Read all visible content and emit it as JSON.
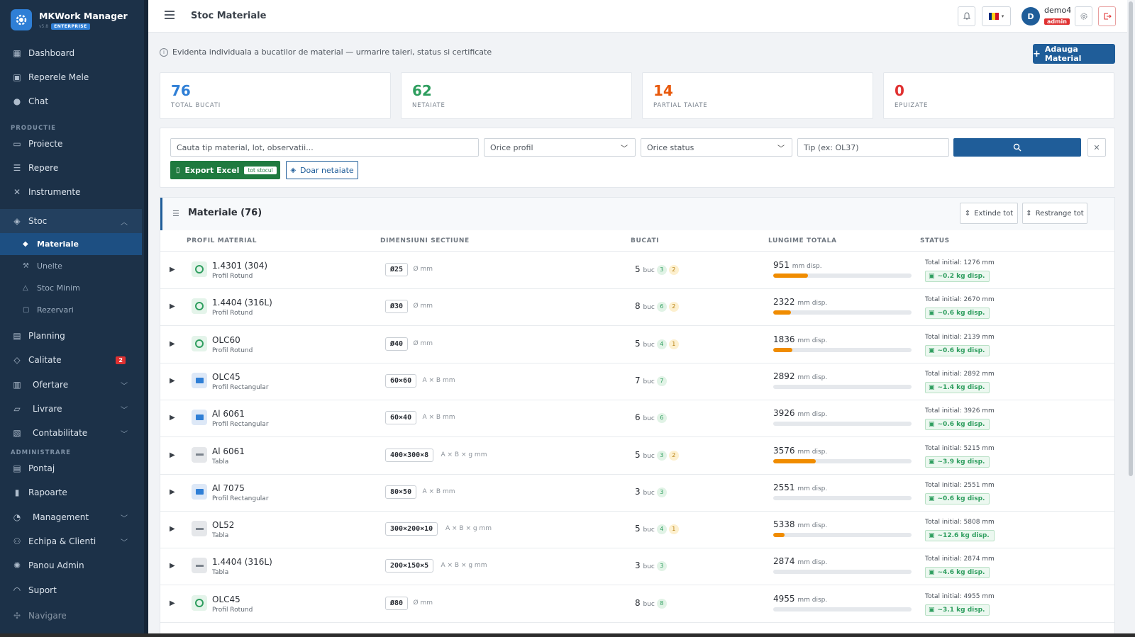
{
  "brand": {
    "name": "MKWork Manager",
    "version": "v5.8",
    "edition": "ENTERPRISE"
  },
  "sidebar": {
    "items": [
      {
        "label": "Dashboard",
        "icon": "dashboard-icon"
      },
      {
        "label": "Reperele Mele",
        "icon": "id-card-icon"
      },
      {
        "label": "Chat",
        "icon": "chat-icon"
      },
      {
        "label": "Proiecte",
        "icon": "folder-icon"
      },
      {
        "label": "Repere",
        "icon": "list-icon"
      },
      {
        "label": "Instrumente",
        "icon": "tools-icon"
      },
      {
        "label": "Stoc",
        "icon": "boxes-icon"
      },
      {
        "label": "Planning",
        "icon": "calendar-icon"
      },
      {
        "label": "Calitate",
        "icon": "shield-icon",
        "badge": "2"
      },
      {
        "label": "Ofertare",
        "icon": "receipt-icon"
      },
      {
        "label": "Livrare",
        "icon": "truck-icon"
      },
      {
        "label": "Contabilitate",
        "icon": "ledger-icon"
      },
      {
        "label": "Pontaj",
        "icon": "calendar-check-icon"
      },
      {
        "label": "Rapoarte",
        "icon": "bar-chart-icon"
      },
      {
        "label": "Management",
        "icon": "gauge-icon"
      },
      {
        "label": "Echipa & Clienti",
        "icon": "users-icon"
      },
      {
        "label": "Panou Admin",
        "icon": "gear-icon"
      },
      {
        "label": "Suport",
        "icon": "headset-icon"
      },
      {
        "label": "Navigare",
        "icon": "compass-icon"
      }
    ],
    "sections": [
      "PRODUCTIE",
      "ADMINISTRARE"
    ],
    "stoc_sub": [
      "Materiale",
      "Unelte",
      "Stoc Minim",
      "Rezervari"
    ]
  },
  "topbar": {
    "title": "Stoc Materiale",
    "user_initial": "D",
    "user_name": "demo4",
    "user_role": "admin"
  },
  "info": {
    "text": "Evidenta individuala a bucatilor de material — urmarire taieri, status si certificate",
    "add_button": "Adauga Material"
  },
  "stats": [
    {
      "value": "76",
      "label": "TOTAL BUCATI",
      "color": "#2f7fd6"
    },
    {
      "value": "62",
      "label": "NETAIATE",
      "color": "#2f9e5f"
    },
    {
      "value": "14",
      "label": "PARTIAL TAIATE",
      "color": "#e8590c"
    },
    {
      "value": "0",
      "label": "EPUIZATE",
      "color": "#e03131"
    }
  ],
  "filters": {
    "search_placeholder": "Cauta tip material, lot, observatii...",
    "profile_select": "Orice profil",
    "status_select": "Orice status",
    "type_placeholder": "Tip (ex: OL37)",
    "export_label": "Export Excel",
    "export_badge": "tot stocul",
    "netaiate_label": "Doar netaiate"
  },
  "table": {
    "title": "Materiale (76)",
    "expand_label": "Extinde tot",
    "collapse_label": "Restrange tot",
    "columns": [
      "PROFIL MATERIAL",
      "DIMENSIUNI SECTIUNE",
      "BUCATI",
      "LUNGIME TOTALA",
      "STATUS"
    ],
    "rows": [
      {
        "material": "1.4301 (304)",
        "profile": "Profil Rotund",
        "kind": "round",
        "dim": "Ø25",
        "dim_unit": "Ø mm",
        "buc": "5",
        "pill_g": "3",
        "pill_y": "2",
        "len": "951",
        "fill": 0.25,
        "total": "Total initial: 1276 mm",
        "kg": "~0.2 kg disp."
      },
      {
        "material": "1.4404 (316L)",
        "profile": "Profil Rotund",
        "kind": "round",
        "dim": "Ø30",
        "dim_unit": "Ø mm",
        "buc": "8",
        "pill_g": "6",
        "pill_y": "2",
        "len": "2322",
        "fill": 0.13,
        "total": "Total initial: 2670 mm",
        "kg": "~0.6 kg disp."
      },
      {
        "material": "OLC60",
        "profile": "Profil Rotund",
        "kind": "round",
        "dim": "Ø40",
        "dim_unit": "Ø mm",
        "buc": "5",
        "pill_g": "4",
        "pill_y": "1",
        "len": "1836",
        "fill": 0.14,
        "total": "Total initial: 2139 mm",
        "kg": "~0.6 kg disp."
      },
      {
        "material": "OLC45",
        "profile": "Profil Rectangular",
        "kind": "rect",
        "dim": "60×60",
        "dim_unit": "A × B mm",
        "buc": "7",
        "pill_g": "7",
        "pill_y": "",
        "len": "2892",
        "fill": 0,
        "total": "Total initial: 2892 mm",
        "kg": "~1.4 kg disp."
      },
      {
        "material": "Al 6061",
        "profile": "Profil Rectangular",
        "kind": "rect",
        "dim": "60×40",
        "dim_unit": "A × B mm",
        "buc": "6",
        "pill_g": "6",
        "pill_y": "",
        "len": "3926",
        "fill": 0,
        "total": "Total initial: 3926 mm",
        "kg": "~0.6 kg disp."
      },
      {
        "material": "Al 6061",
        "profile": "Tabla",
        "kind": "tabla",
        "dim": "400×300×8",
        "dim_unit": "A × B × g mm",
        "buc": "5",
        "pill_g": "3",
        "pill_y": "2",
        "len": "3576",
        "fill": 0.31,
        "total": "Total initial: 5215 mm",
        "kg": "~3.9 kg disp."
      },
      {
        "material": "Al 7075",
        "profile": "Profil Rectangular",
        "kind": "rect",
        "dim": "80×50",
        "dim_unit": "A × B mm",
        "buc": "3",
        "pill_g": "3",
        "pill_y": "",
        "len": "2551",
        "fill": 0,
        "total": "Total initial: 2551 mm",
        "kg": "~0.6 kg disp."
      },
      {
        "material": "OL52",
        "profile": "Tabla",
        "kind": "tabla",
        "dim": "300×200×10",
        "dim_unit": "A × B × g mm",
        "buc": "5",
        "pill_g": "4",
        "pill_y": "1",
        "len": "5338",
        "fill": 0.08,
        "total": "Total initial: 5808 mm",
        "kg": "~12.6 kg disp."
      },
      {
        "material": "1.4404 (316L)",
        "profile": "Tabla",
        "kind": "tabla",
        "dim": "200×150×5",
        "dim_unit": "A × B × g mm",
        "buc": "3",
        "pill_g": "3",
        "pill_y": "",
        "len": "2874",
        "fill": 0,
        "total": "Total initial: 2874 mm",
        "kg": "~4.6 kg disp."
      },
      {
        "material": "OLC45",
        "profile": "Profil Rotund",
        "kind": "round",
        "dim": "Ø80",
        "dim_unit": "Ø mm",
        "buc": "8",
        "pill_g": "8",
        "pill_y": "",
        "len": "4955",
        "fill": 0,
        "total": "Total initial: 4955 mm",
        "kg": "~3.1 kg disp."
      }
    ]
  },
  "units": {
    "buc": "buc",
    "mm_disp": "mm disp."
  }
}
